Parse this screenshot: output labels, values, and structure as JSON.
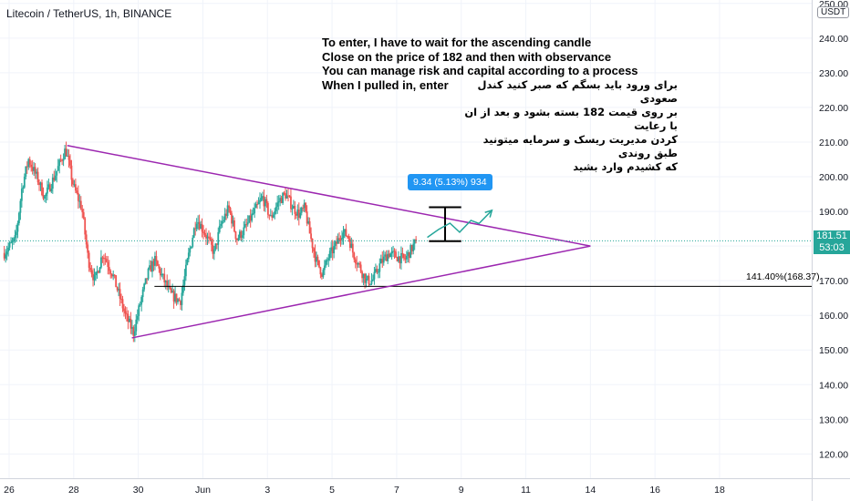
{
  "header": {
    "title": "Litecoin / TetherUS, 1h, BINANCE"
  },
  "annotations": {
    "english_lines": [
      "To enter, I have to wait for the ascending candle",
      "Close on the price of 182 and then with observance",
      "You can manage risk and capital according to a process",
      "When I pulled in, enter"
    ],
    "persian_lines": [
      "برای ورود باید بسگم که صبر کنید کندل صعودی",
      "بر روی قیمت 182 بسته بشود و بعد از ان با رعایت",
      "کردن مدیریت ریسک و سرمایه میتونید طبق روندی",
      "که کشیدم وارد بشید"
    ]
  },
  "price_axis": {
    "currency": "USDT",
    "current_price": "181.51",
    "countdown": "53:03"
  },
  "measure": {
    "label": "9.34 (5.13%) 934"
  },
  "level": {
    "label": "141.40%(168.37)",
    "value": 168.37
  },
  "colors": {
    "up": "#26a69a",
    "down": "#ef5350",
    "triangle": "#9c27b0",
    "projection": "#26a69a",
    "measure": "#2196f3",
    "level": "#000000"
  },
  "chart_data": {
    "type": "candlestick",
    "title": "Litecoin / TetherUS, 1h, BINANCE",
    "ylim": [
      113,
      251
    ],
    "y_ticks": [
      120,
      130,
      140,
      150,
      160,
      170,
      180,
      190,
      200,
      210,
      220,
      230,
      240,
      250
    ],
    "y_tick_labels": [
      "120.00",
      "130.00",
      "140.00",
      "150.00",
      "160.00",
      "170.00",
      "180.00",
      "190.00",
      "200.00",
      "210.00",
      "220.00",
      "230.00",
      "240.00",
      "250.00"
    ],
    "x_range": [
      26,
      19.3
    ],
    "x_ticks": [
      {
        "day": 26,
        "label": "26"
      },
      {
        "day": 28,
        "label": "28"
      },
      {
        "day": 30,
        "label": "30"
      },
      {
        "day": 32,
        "label": "Jun"
      },
      {
        "day": 34,
        "label": "3"
      },
      {
        "day": 36,
        "label": "5"
      },
      {
        "day": 38,
        "label": "7"
      },
      {
        "day": 40,
        "label": "9"
      },
      {
        "day": 42,
        "label": "11"
      },
      {
        "day": 44,
        "label": "14"
      },
      {
        "day": 46,
        "label": "16"
      },
      {
        "day": 48,
        "label": "18"
      }
    ],
    "price_anchors": [
      [
        25.85,
        178
      ],
      [
        26.2,
        182
      ],
      [
        26.4,
        197
      ],
      [
        26.6,
        205
      ],
      [
        26.9,
        199
      ],
      [
        27.1,
        194
      ],
      [
        27.4,
        200
      ],
      [
        27.75,
        208
      ],
      [
        28.0,
        197
      ],
      [
        28.25,
        191
      ],
      [
        28.45,
        176
      ],
      [
        28.65,
        170
      ],
      [
        28.9,
        178
      ],
      [
        29.2,
        172
      ],
      [
        29.4,
        166
      ],
      [
        29.6,
        160
      ],
      [
        29.85,
        155
      ],
      [
        30.1,
        165
      ],
      [
        30.3,
        172
      ],
      [
        30.5,
        176
      ],
      [
        30.75,
        171
      ],
      [
        31.0,
        166
      ],
      [
        31.3,
        164
      ],
      [
        31.55,
        177
      ],
      [
        31.8,
        188
      ],
      [
        32.05,
        184
      ],
      [
        32.35,
        178
      ],
      [
        32.55,
        186
      ],
      [
        32.8,
        191
      ],
      [
        33.05,
        182
      ],
      [
        33.3,
        185
      ],
      [
        33.6,
        190
      ],
      [
        33.85,
        194
      ],
      [
        34.1,
        188
      ],
      [
        34.35,
        193
      ],
      [
        34.55,
        195
      ],
      [
        34.8,
        191
      ],
      [
        35.0,
        189
      ],
      [
        35.15,
        191
      ],
      [
        35.3,
        184
      ],
      [
        35.5,
        176
      ],
      [
        35.7,
        172
      ],
      [
        35.9,
        177
      ],
      [
        36.1,
        180
      ],
      [
        36.3,
        184
      ],
      [
        36.5,
        183
      ],
      [
        36.65,
        178
      ],
      [
        36.85,
        174
      ],
      [
        37.05,
        170
      ],
      [
        37.25,
        170
      ],
      [
        37.5,
        175
      ],
      [
        37.75,
        178
      ],
      [
        38.0,
        177
      ],
      [
        38.25,
        176
      ],
      [
        38.45,
        179
      ],
      [
        38.6,
        181.5
      ]
    ],
    "triangle_lines": [
      {
        "from": [
          27.8,
          209
        ],
        "to": [
          44.0,
          180
        ]
      },
      {
        "from": [
          29.8,
          153.5
        ],
        "to": [
          44.0,
          180
        ]
      }
    ],
    "horizontal_level": {
      "from_day": 30.5,
      "price": 168.37
    },
    "measure_box": {
      "x_from": 39.0,
      "x_to": 40.0,
      "price_low": 181.4,
      "price_high": 191.2
    },
    "projection_path": [
      [
        38.95,
        182.5
      ],
      [
        39.3,
        184.8
      ],
      [
        39.65,
        186.6
      ],
      [
        39.95,
        184
      ],
      [
        40.3,
        187.4
      ],
      [
        40.55,
        186.5
      ],
      [
        40.95,
        190.3
      ]
    ],
    "last_price": 181.51
  }
}
